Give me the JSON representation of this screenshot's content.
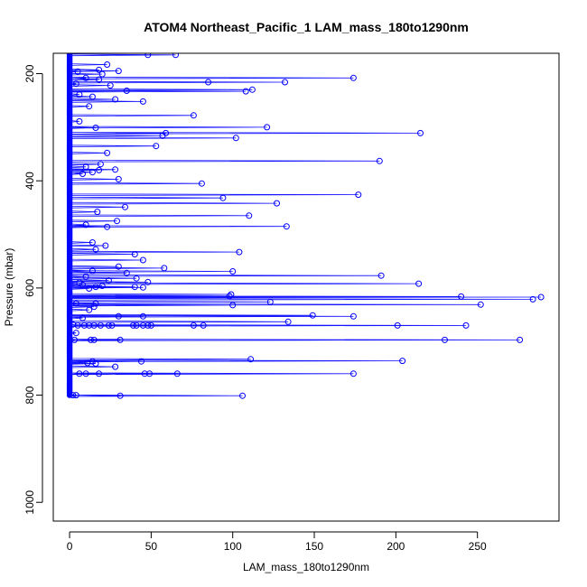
{
  "chart_data": {
    "type": "scatter",
    "title": "ATOM4 Northeast_Pacific_1 LAM_mass_180to1290nm",
    "xlabel": "LAM_mass_180to1290nm",
    "ylabel": "Pressure (mbar)",
    "xlim": [
      -10,
      300
    ],
    "ylim": [
      1035,
      162
    ],
    "y_reversed": true,
    "x_ticks": [
      0,
      50,
      100,
      150,
      200,
      250
    ],
    "y_ticks": [
      200,
      400,
      600,
      800,
      1000
    ],
    "grid": false,
    "legend": "none",
    "colors": {
      "profile_line": "#1414ff",
      "marker": "#0000ff",
      "dense_points": "#0000ff"
    },
    "series": [
      {
        "marker": "open-circle",
        "points": [
          [
            48,
            165
          ],
          [
            65,
            165
          ],
          [
            23,
            183
          ],
          [
            18,
            193
          ],
          [
            30,
            195
          ],
          [
            5,
            196
          ],
          [
            20,
            201
          ],
          [
            174,
            208
          ],
          [
            10,
            208
          ],
          [
            18,
            211
          ],
          [
            85,
            216
          ],
          [
            132,
            216
          ],
          [
            4,
            219
          ],
          [
            25,
            222
          ],
          [
            112,
            230
          ],
          [
            108,
            233
          ],
          [
            35,
            232
          ],
          [
            6,
            239
          ],
          [
            14,
            243
          ],
          [
            28,
            248
          ],
          [
            45,
            252
          ],
          [
            12,
            261
          ],
          [
            76,
            278
          ],
          [
            6,
            289
          ],
          [
            121,
            300
          ],
          [
            16,
            301
          ],
          [
            59,
            311
          ],
          [
            215,
            311
          ],
          [
            57,
            316
          ],
          [
            102,
            320
          ],
          [
            53,
            335
          ],
          [
            23,
            348
          ],
          [
            190,
            363
          ],
          [
            19,
            369
          ],
          [
            10,
            374
          ],
          [
            28,
            379
          ],
          [
            18,
            380
          ],
          [
            14,
            384
          ],
          [
            8,
            387
          ],
          [
            30,
            397
          ],
          [
            81,
            405
          ],
          [
            94,
            432
          ],
          [
            177,
            426
          ],
          [
            127,
            442
          ],
          [
            34,
            449
          ],
          [
            17,
            458
          ],
          [
            110,
            465
          ],
          [
            29,
            475
          ],
          [
            10,
            482
          ],
          [
            23,
            486
          ],
          [
            133,
            485
          ],
          [
            14,
            515
          ],
          [
            22,
            521
          ],
          [
            16,
            528
          ],
          [
            104,
            533
          ],
          [
            40,
            537
          ],
          [
            45,
            548
          ],
          [
            30,
            560
          ],
          [
            58,
            563
          ],
          [
            14,
            568
          ],
          [
            100,
            569
          ],
          [
            35,
            572
          ],
          [
            191,
            577
          ],
          [
            10,
            579
          ],
          [
            41,
            582
          ],
          [
            24,
            586
          ],
          [
            6,
            590
          ],
          [
            48,
            589
          ],
          [
            8,
            594
          ],
          [
            214,
            592
          ],
          [
            20,
            596
          ],
          [
            40,
            598
          ],
          [
            45,
            599
          ],
          [
            16,
            598
          ],
          [
            12,
            601
          ],
          [
            99,
            612
          ],
          [
            240,
            616
          ],
          [
            98,
            615
          ],
          [
            289,
            617
          ],
          [
            284,
            621
          ],
          [
            123,
            626
          ],
          [
            252,
            631
          ],
          [
            100,
            632
          ],
          [
            16,
            629
          ],
          [
            4,
            629
          ],
          [
            15,
            635
          ],
          [
            12,
            641
          ],
          [
            149,
            651
          ],
          [
            174,
            653
          ],
          [
            45,
            653
          ],
          [
            30,
            653
          ],
          [
            8,
            656
          ],
          [
            134,
            663
          ],
          [
            2,
            668
          ],
          [
            5,
            670
          ],
          [
            9,
            670
          ],
          [
            12,
            670
          ],
          [
            15,
            670
          ],
          [
            19,
            670
          ],
          [
            24,
            670
          ],
          [
            26,
            670
          ],
          [
            39,
            670
          ],
          [
            41,
            670
          ],
          [
            45,
            670
          ],
          [
            48,
            670
          ],
          [
            50,
            670
          ],
          [
            76,
            670
          ],
          [
            82,
            670
          ],
          [
            201,
            670
          ],
          [
            243,
            670
          ],
          [
            4,
            684
          ],
          [
            3,
            697
          ],
          [
            13,
            697
          ],
          [
            15,
            697
          ],
          [
            31,
            697
          ],
          [
            230,
            697
          ],
          [
            276,
            697
          ],
          [
            111,
            733
          ],
          [
            204,
            736
          ],
          [
            14,
            737
          ],
          [
            44,
            737
          ],
          [
            11,
            740
          ],
          [
            16,
            741
          ],
          [
            28,
            747
          ],
          [
            6,
            760
          ],
          [
            10,
            760
          ],
          [
            18,
            760
          ],
          [
            46,
            760
          ],
          [
            49,
            760
          ],
          [
            66,
            760
          ],
          [
            174,
            760
          ],
          [
            2,
            800
          ],
          [
            4,
            800
          ],
          [
            31,
            801
          ],
          [
            106,
            801
          ]
        ]
      }
    ]
  }
}
